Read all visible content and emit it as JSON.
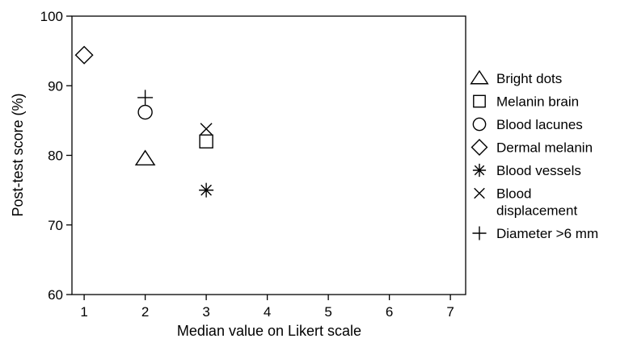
{
  "chart_data": {
    "type": "scatter",
    "title": "",
    "xlabel": "Median value on Likert scale",
    "ylabel": "Post-test score (%)",
    "xlim": [
      0.8,
      7.25
    ],
    "ylim": [
      60,
      100
    ],
    "xticks": [
      1,
      2,
      3,
      4,
      5,
      6,
      7
    ],
    "yticks": [
      60,
      70,
      80,
      90,
      100
    ],
    "grid": false,
    "legend_position": "right",
    "series": [
      {
        "name": "Bright dots",
        "marker": "triangle",
        "x": 2,
        "y": 79.5
      },
      {
        "name": "Melanin brain",
        "marker": "square",
        "x": 3,
        "y": 82
      },
      {
        "name": "Blood lacunes",
        "marker": "circle",
        "x": 2,
        "y": 86.2
      },
      {
        "name": "Dermal melanin",
        "marker": "diamond",
        "x": 1,
        "y": 94.4
      },
      {
        "name": "Blood vessels",
        "marker": "asterisk",
        "x": 3,
        "y": 75
      },
      {
        "name": "Blood\ndisplacement",
        "marker": "x",
        "x": 3,
        "y": 83.8
      },
      {
        "name": "Diameter >6 mm",
        "marker": "plus",
        "x": 2,
        "y": 88.3
      }
    ]
  }
}
